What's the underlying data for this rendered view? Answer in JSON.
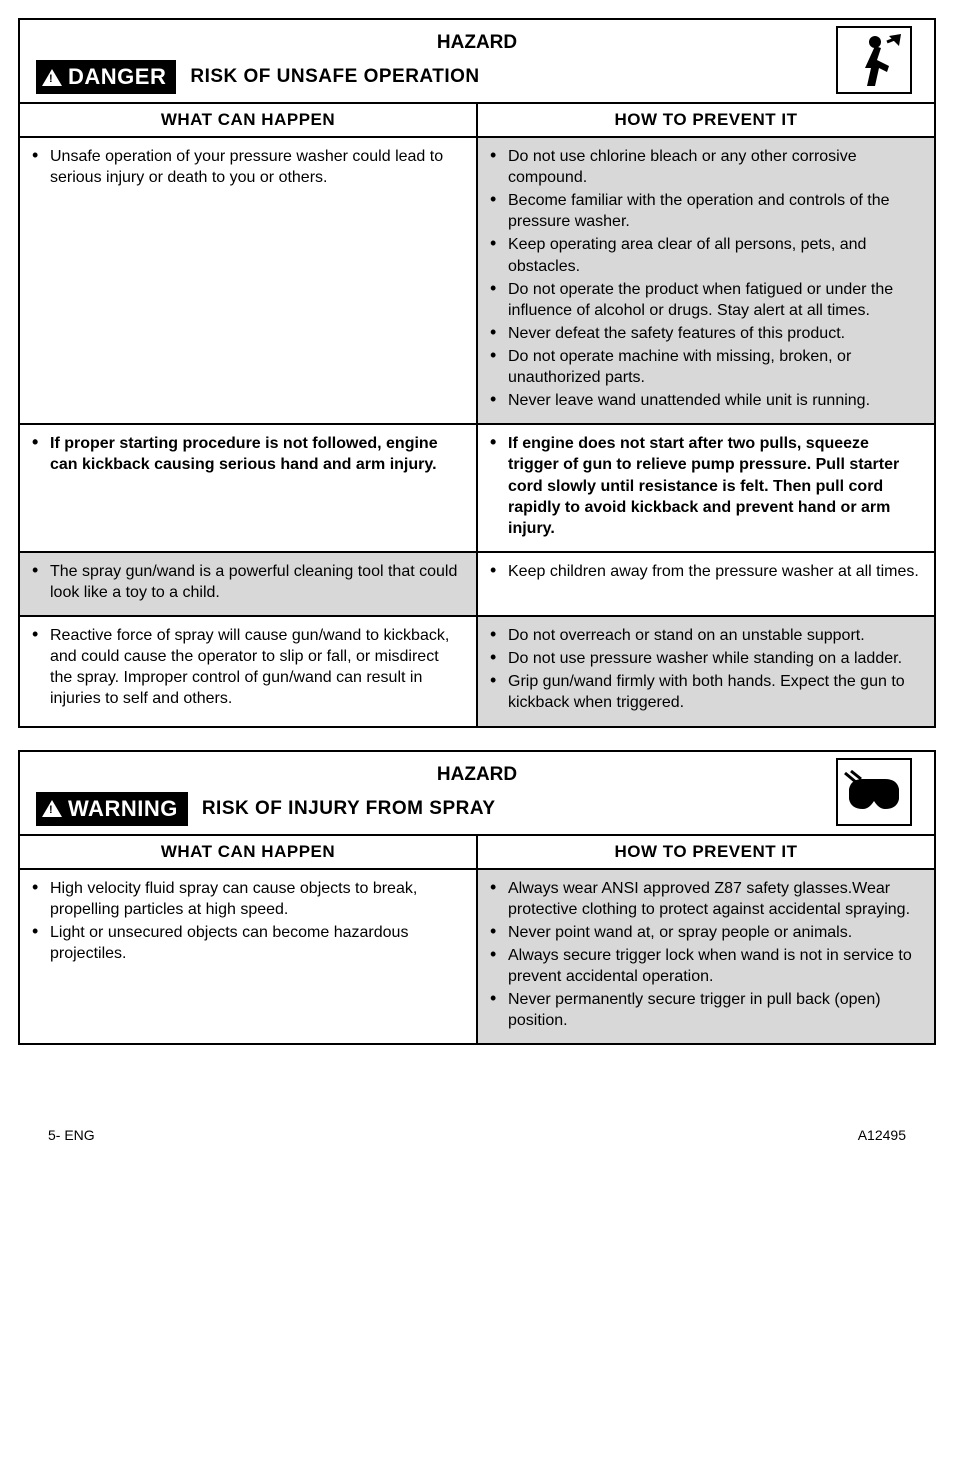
{
  "box1": {
    "hazard": "HAZARD",
    "badge": "DANGER",
    "risk": "RISK OF UNSAFE OPERATION",
    "headers": {
      "left": "WHAT CAN HAPPEN",
      "right": "HOW TO PREVENT IT"
    },
    "rows": [
      {
        "left_gray": false,
        "right_gray": true,
        "left": [
          "Unsafe operation of your pressure washer could lead to serious injury or death to you or others."
        ],
        "right": [
          "Do not use chlorine bleach or any other corrosive compound.",
          "Become familiar with the operation and controls of the pressure washer.",
          "Keep operating area clear of all persons, pets, and obstacles.",
          "Do not operate the product when fatigued or under the influence of alcohol or drugs. Stay alert at all times.",
          "Never defeat the safety features of this product.",
          "Do not operate machine with missing, broken, or unauthorized parts.",
          "Never leave wand unattended while unit is running."
        ]
      },
      {
        "left_gray": false,
        "right_gray": false,
        "left_bold": true,
        "right_bold": true,
        "left": [
          "If proper starting procedure is not followed, engine can kickback causing serious hand and arm injury."
        ],
        "right": [
          "If engine does not start after two pulls, squeeze trigger of gun to relieve pump pressure. Pull starter cord slowly until resistance is felt. Then pull cord rapidly to avoid kickback and prevent hand or arm injury."
        ]
      },
      {
        "left_gray": true,
        "right_gray": false,
        "left": [
          "The spray gun/wand is a powerful cleaning tool that could look like a toy to a child."
        ],
        "right": [
          "Keep children away from the pressure washer at all times."
        ]
      },
      {
        "left_gray": false,
        "right_gray": true,
        "left": [
          "Reactive force of spray will cause gun/wand to kickback, and could cause the operator to slip or fall, or misdirect the spray. Improper control of gun/wand can result in injuries to self and others."
        ],
        "right": [
          "Do not overreach or stand on an unstable support.",
          "Do not use pressure washer while standing on a ladder.",
          "Grip gun/wand firmly with both hands. Expect the gun to kickback when triggered."
        ]
      }
    ]
  },
  "box2": {
    "hazard": "HAZARD",
    "badge": "WARNING",
    "risk": "RISK OF INJURY FROM SPRAY",
    "headers": {
      "left": "WHAT CAN HAPPEN",
      "right": "HOW TO PREVENT IT"
    },
    "rows": [
      {
        "left_gray": false,
        "right_gray": true,
        "left": [
          "High velocity fluid spray can cause objects to break, propelling particles at high speed.",
          "Light or unsecured objects can become hazardous projectiles."
        ],
        "right": [
          "Always wear ANSI approved Z87 safety glasses.Wear protective clothing to protect against accidental spraying.",
          "Never point wand at, or spray people or animals.",
          "Always secure trigger lock when wand is not in service to prevent accidental operation.",
          "Never permanently secure trigger in pull back (open) position."
        ]
      }
    ]
  },
  "footer": {
    "left": "5- ENG",
    "right": "A12495"
  }
}
